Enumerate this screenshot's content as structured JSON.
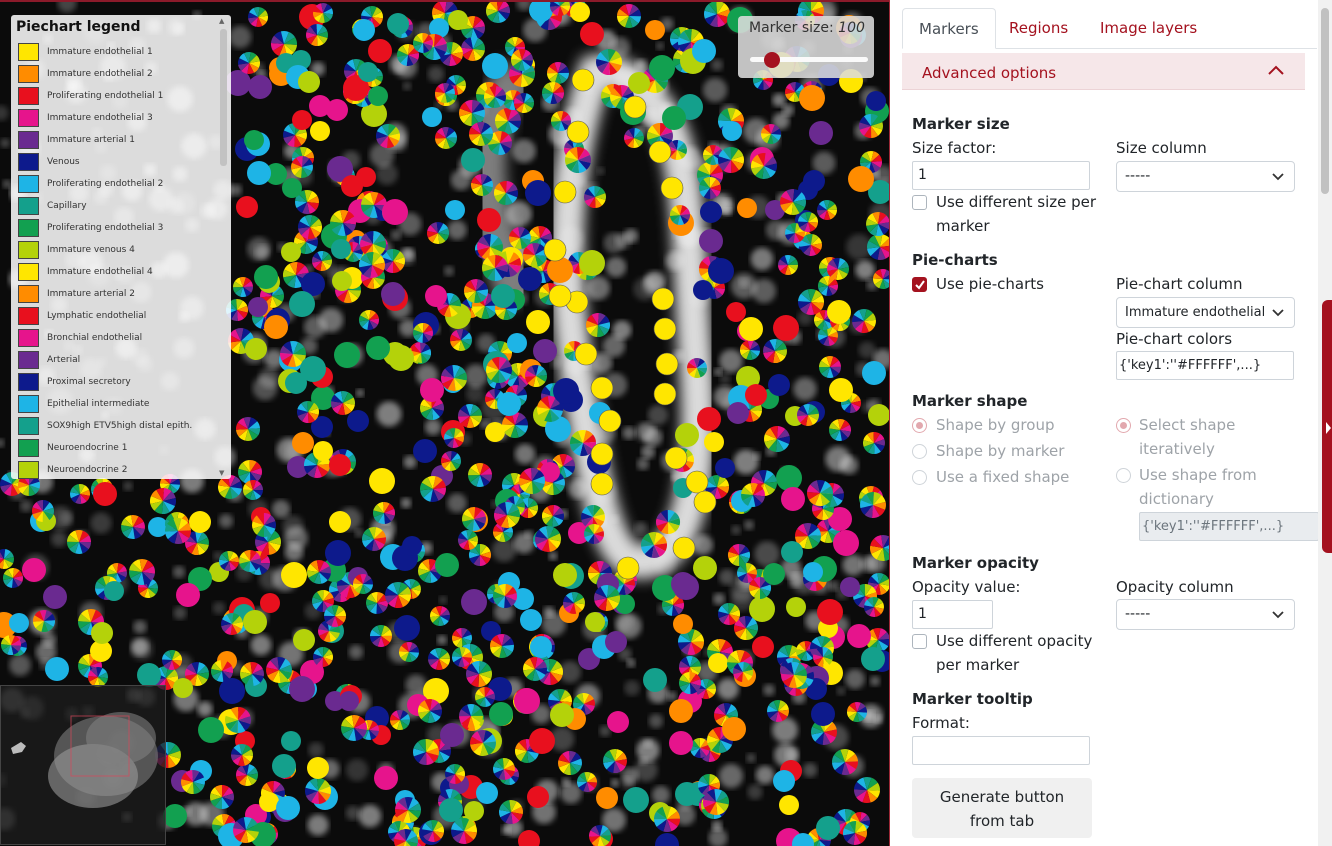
{
  "viewer": {
    "legend": {
      "title": "Piechart legend",
      "items": [
        {
          "label": "Immature endothelial 1",
          "color": "#ffe600"
        },
        {
          "label": "Immature endothelial 2",
          "color": "#ff8c00"
        },
        {
          "label": "Proliferating endothelial 1",
          "color": "#e8101e"
        },
        {
          "label": "Immature endothelial 3",
          "color": "#e6148c"
        },
        {
          "label": "Immature arterial 1",
          "color": "#6a2a90"
        },
        {
          "label": "Venous",
          "color": "#0d1a8c"
        },
        {
          "label": "Proliferating endothelial 2",
          "color": "#1eb4e6"
        },
        {
          "label": "Capillary",
          "color": "#14a08c"
        },
        {
          "label": "Proliferating endothelial 3",
          "color": "#12a050"
        },
        {
          "label": "Immature venous 4",
          "color": "#b4d20a"
        },
        {
          "label": "Immature endothelial 4",
          "color": "#ffe600"
        },
        {
          "label": "Immature arterial 2",
          "color": "#ff8c00"
        },
        {
          "label": "Lymphatic endothelial",
          "color": "#e8101e"
        },
        {
          "label": "Bronchial endothelial",
          "color": "#e6148c"
        },
        {
          "label": "Arterial",
          "color": "#6a2a90"
        },
        {
          "label": "Proximal secretory",
          "color": "#0d1a8c"
        },
        {
          "label": "Epithelial intermediate",
          "color": "#1eb4e6"
        },
        {
          "label": "SOX9high ETV5high distal epith.",
          "color": "#14a08c"
        },
        {
          "label": "Neuroendocrine 1",
          "color": "#12a050"
        },
        {
          "label": "Neuroendocrine 2",
          "color": "#b4d20a"
        }
      ]
    },
    "marker_size": {
      "label": "Marker size:",
      "value": "100"
    }
  },
  "panel": {
    "tabs": [
      {
        "label": "Markers",
        "active": true
      },
      {
        "label": "Regions",
        "active": false
      },
      {
        "label": "Image layers",
        "active": false
      }
    ],
    "advanced_label": "Advanced options",
    "marker_size": {
      "heading": "Marker size",
      "size_factor_label": "Size factor:",
      "size_factor_value": "1",
      "different_size_label": "Use different size per",
      "different_size_label_2": "marker",
      "different_size_checked": false,
      "size_column_label": "Size column",
      "size_column_value": "-----"
    },
    "pie_charts": {
      "heading": "Pie-charts",
      "use_label": "Use pie-charts",
      "use_checked": true,
      "column_label": "Pie-chart column",
      "column_value": "Immature endothelial",
      "colors_label": "Pie-chart colors",
      "colors_value": "{'key1':''#FFFFFF',...}"
    },
    "marker_shape": {
      "heading": "Marker shape",
      "by_group": "Shape by group",
      "by_marker": "Shape by marker",
      "fixed": "Use a fixed shape",
      "iteratively_1": "Select shape",
      "iteratively_2": "iteratively",
      "dictionary_1": "Use shape from",
      "dictionary_2": "dictionary",
      "dictionary_value": "{'key1':''#FFFFFF',...}"
    },
    "marker_opacity": {
      "heading": "Marker opacity",
      "value_label": "Opacity value:",
      "value": "1",
      "different_label": "Use different opacity",
      "different_label_2": "per marker",
      "column_label": "Opacity column",
      "column_value": "-----"
    },
    "marker_tooltip": {
      "heading": "Marker tooltip",
      "format_label": "Format:",
      "format_value": ""
    },
    "generate_button_1": "Generate button",
    "generate_button_2": "from tab"
  }
}
